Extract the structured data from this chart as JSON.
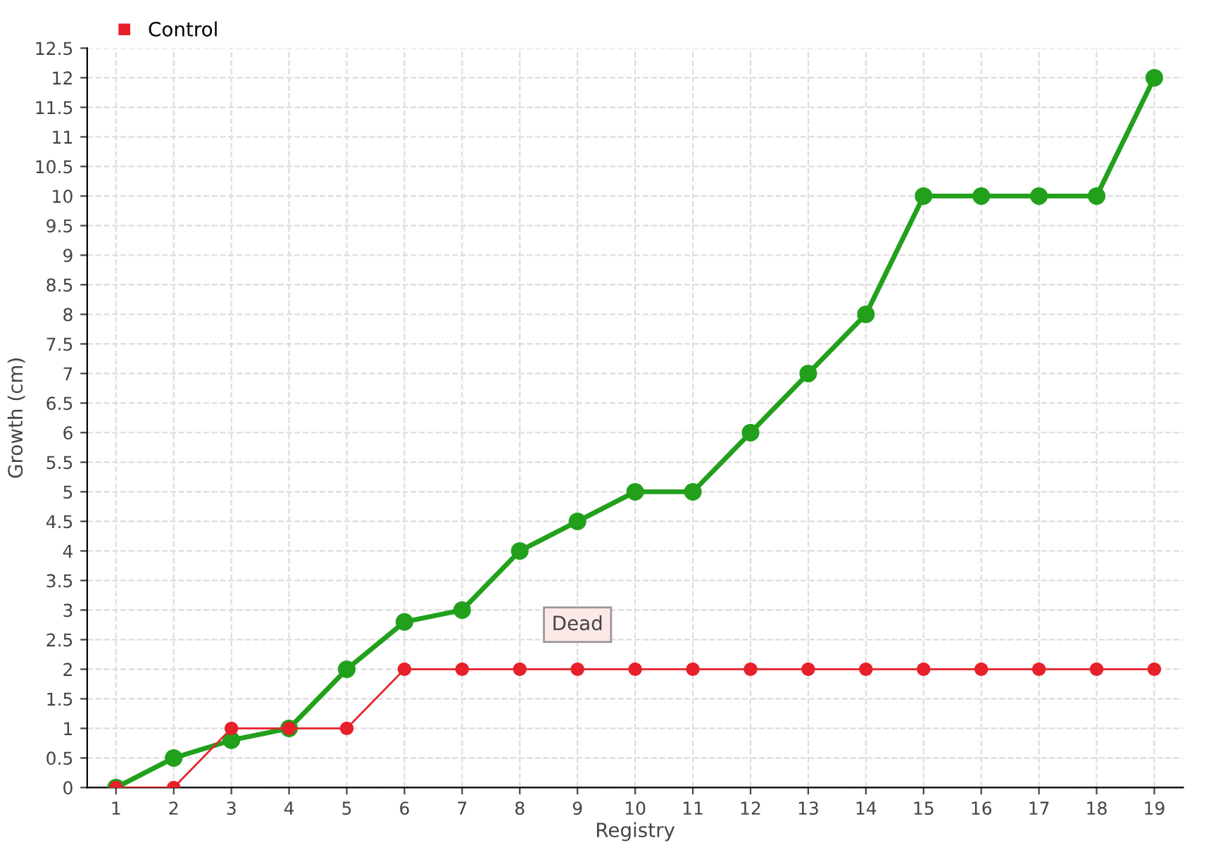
{
  "chart_data": {
    "type": "line",
    "xlabel": "Registry",
    "ylabel": "Growth (cm)",
    "categories": [
      "1",
      "2",
      "3",
      "4",
      "5",
      "6",
      "7",
      "8",
      "9",
      "10",
      "11",
      "12",
      "13",
      "14",
      "15",
      "16",
      "17",
      "18",
      "19"
    ],
    "series": [
      {
        "color": "#22a01c",
        "values": [
          0,
          0.5,
          0.8,
          1,
          2,
          2.8,
          3,
          4,
          4.5,
          5,
          5,
          6,
          7,
          8,
          10,
          10,
          10,
          10,
          12
        ]
      },
      {
        "name": "Control",
        "color": "#e8202a",
        "values": [
          0,
          0,
          1,
          1,
          1,
          2,
          2,
          2,
          2,
          2,
          2,
          2,
          2,
          2,
          2,
          2,
          2,
          2,
          2
        ]
      }
    ],
    "ylim": [
      0,
      12.5
    ],
    "yticks": [
      0,
      0.5,
      1,
      1.5,
      2,
      2.5,
      3,
      3.5,
      4,
      4.5,
      5,
      5.5,
      6,
      6.5,
      7,
      7.5,
      8,
      8.5,
      9,
      9.5,
      10,
      10.5,
      11,
      11.5,
      12,
      12.5
    ],
    "grid": true,
    "legend": "top left",
    "marker": "circle",
    "line_style": "solid",
    "annotations": [
      {
        "text": "Dead",
        "x": "9",
        "y": 2
      }
    ]
  }
}
